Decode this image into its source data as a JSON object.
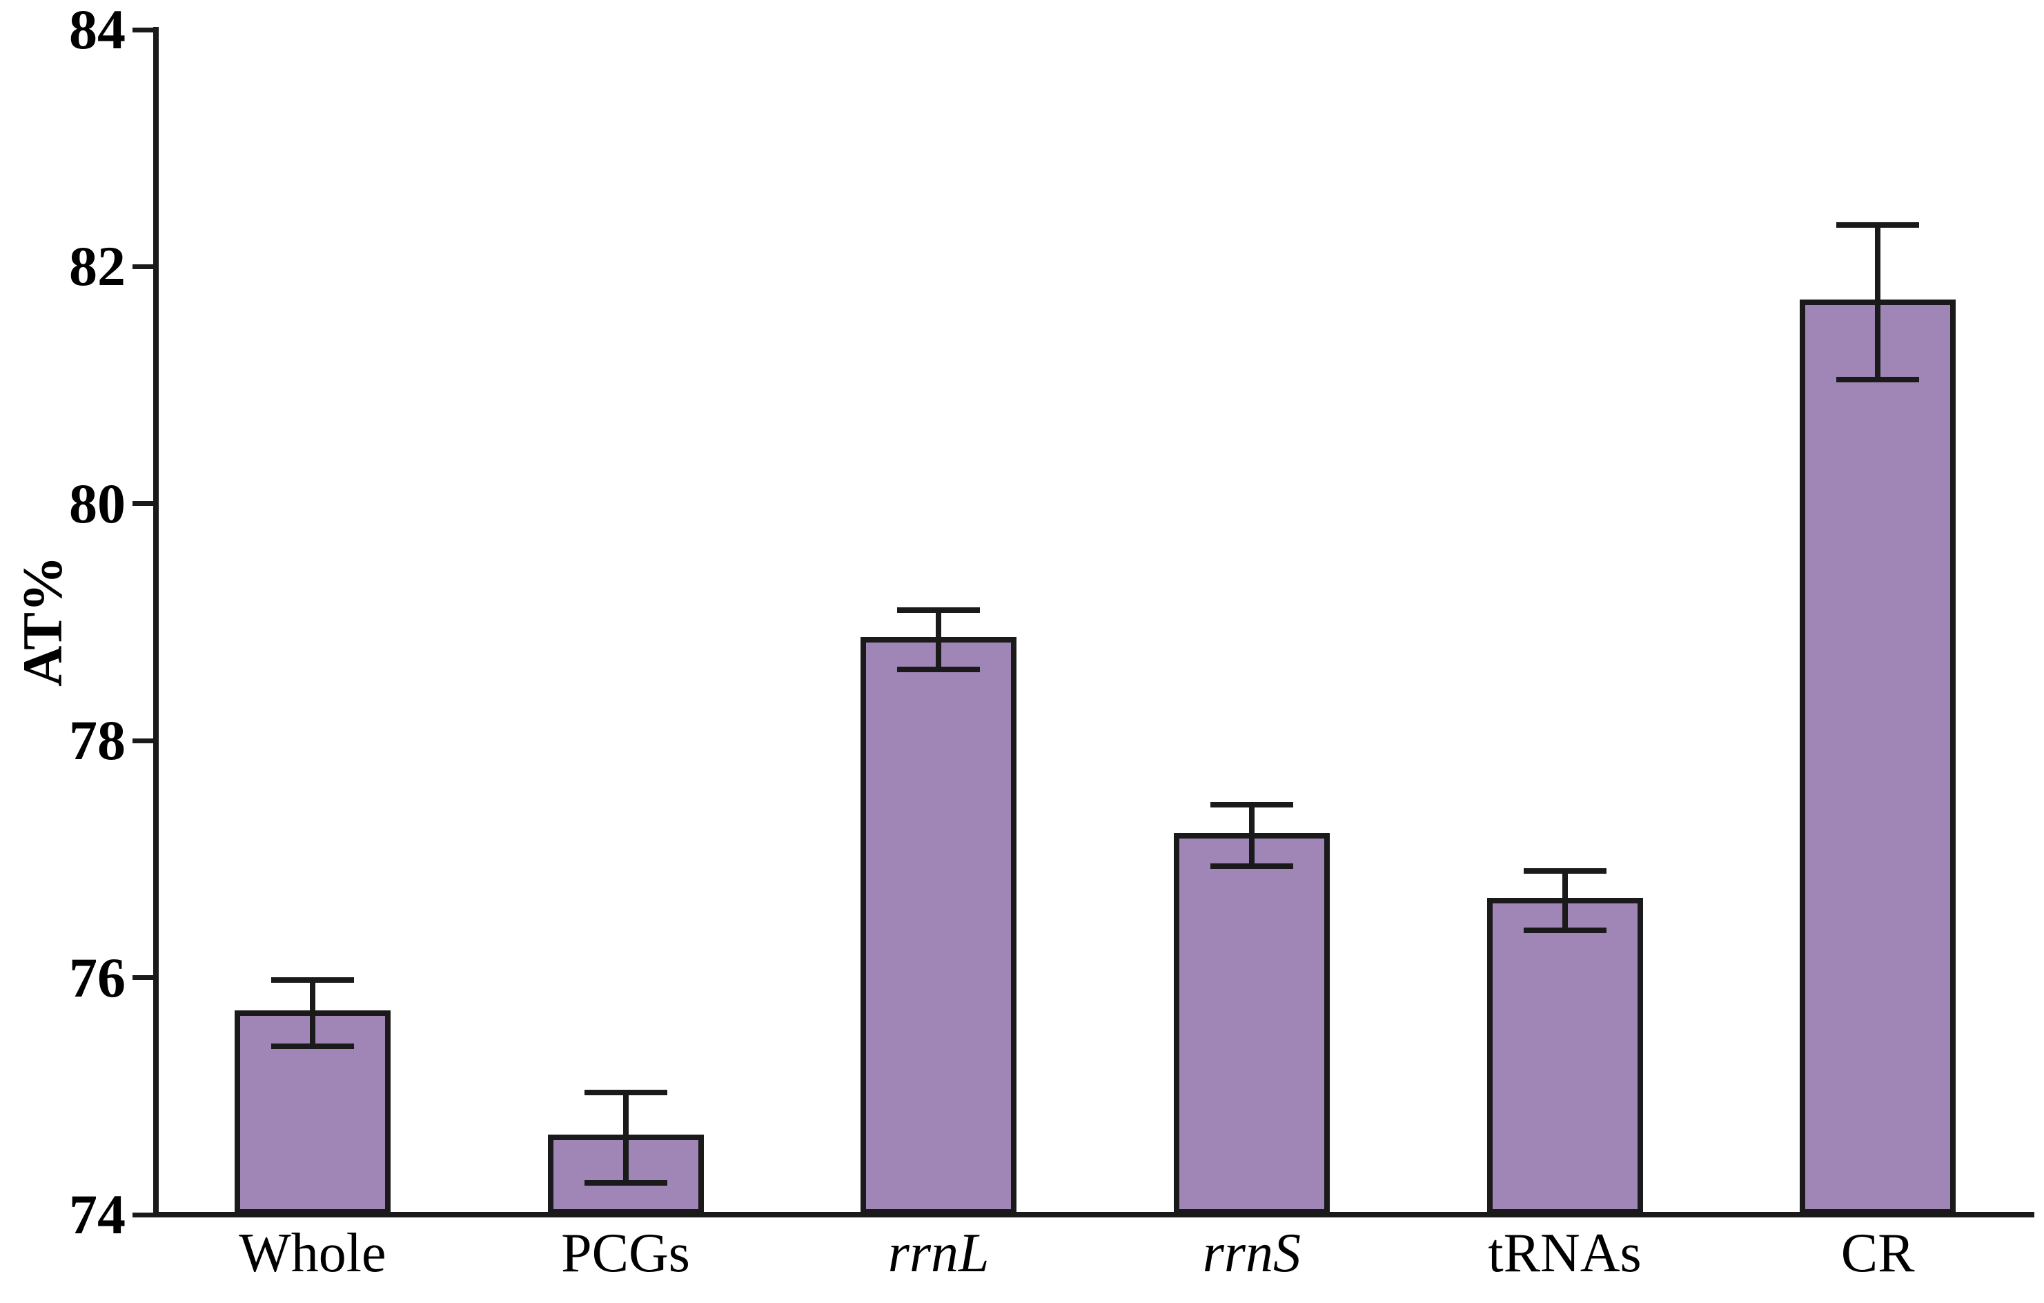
{
  "chart_data": {
    "type": "bar",
    "title": "",
    "xlabel": "",
    "ylabel": "AT%",
    "ylim": [
      74,
      84
    ],
    "yticks": [
      74,
      76,
      78,
      80,
      82,
      84
    ],
    "grid": false,
    "legend": null,
    "bar_color": "#a086b7",
    "axis_color": "#1a1a1a",
    "categories": [
      {
        "label": "Whole",
        "italic": false
      },
      {
        "label": "PCGs",
        "italic": false
      },
      {
        "label": "rrnL",
        "italic": true
      },
      {
        "label": "rrnS",
        "italic": true
      },
      {
        "label": "tRNAs",
        "italic": false
      },
      {
        "label": "CR",
        "italic": false
      }
    ],
    "values": [
      75.7,
      74.65,
      78.85,
      77.2,
      76.65,
      81.7
    ],
    "errors": [
      0.28,
      0.38,
      0.25,
      0.26,
      0.25,
      0.65
    ]
  }
}
